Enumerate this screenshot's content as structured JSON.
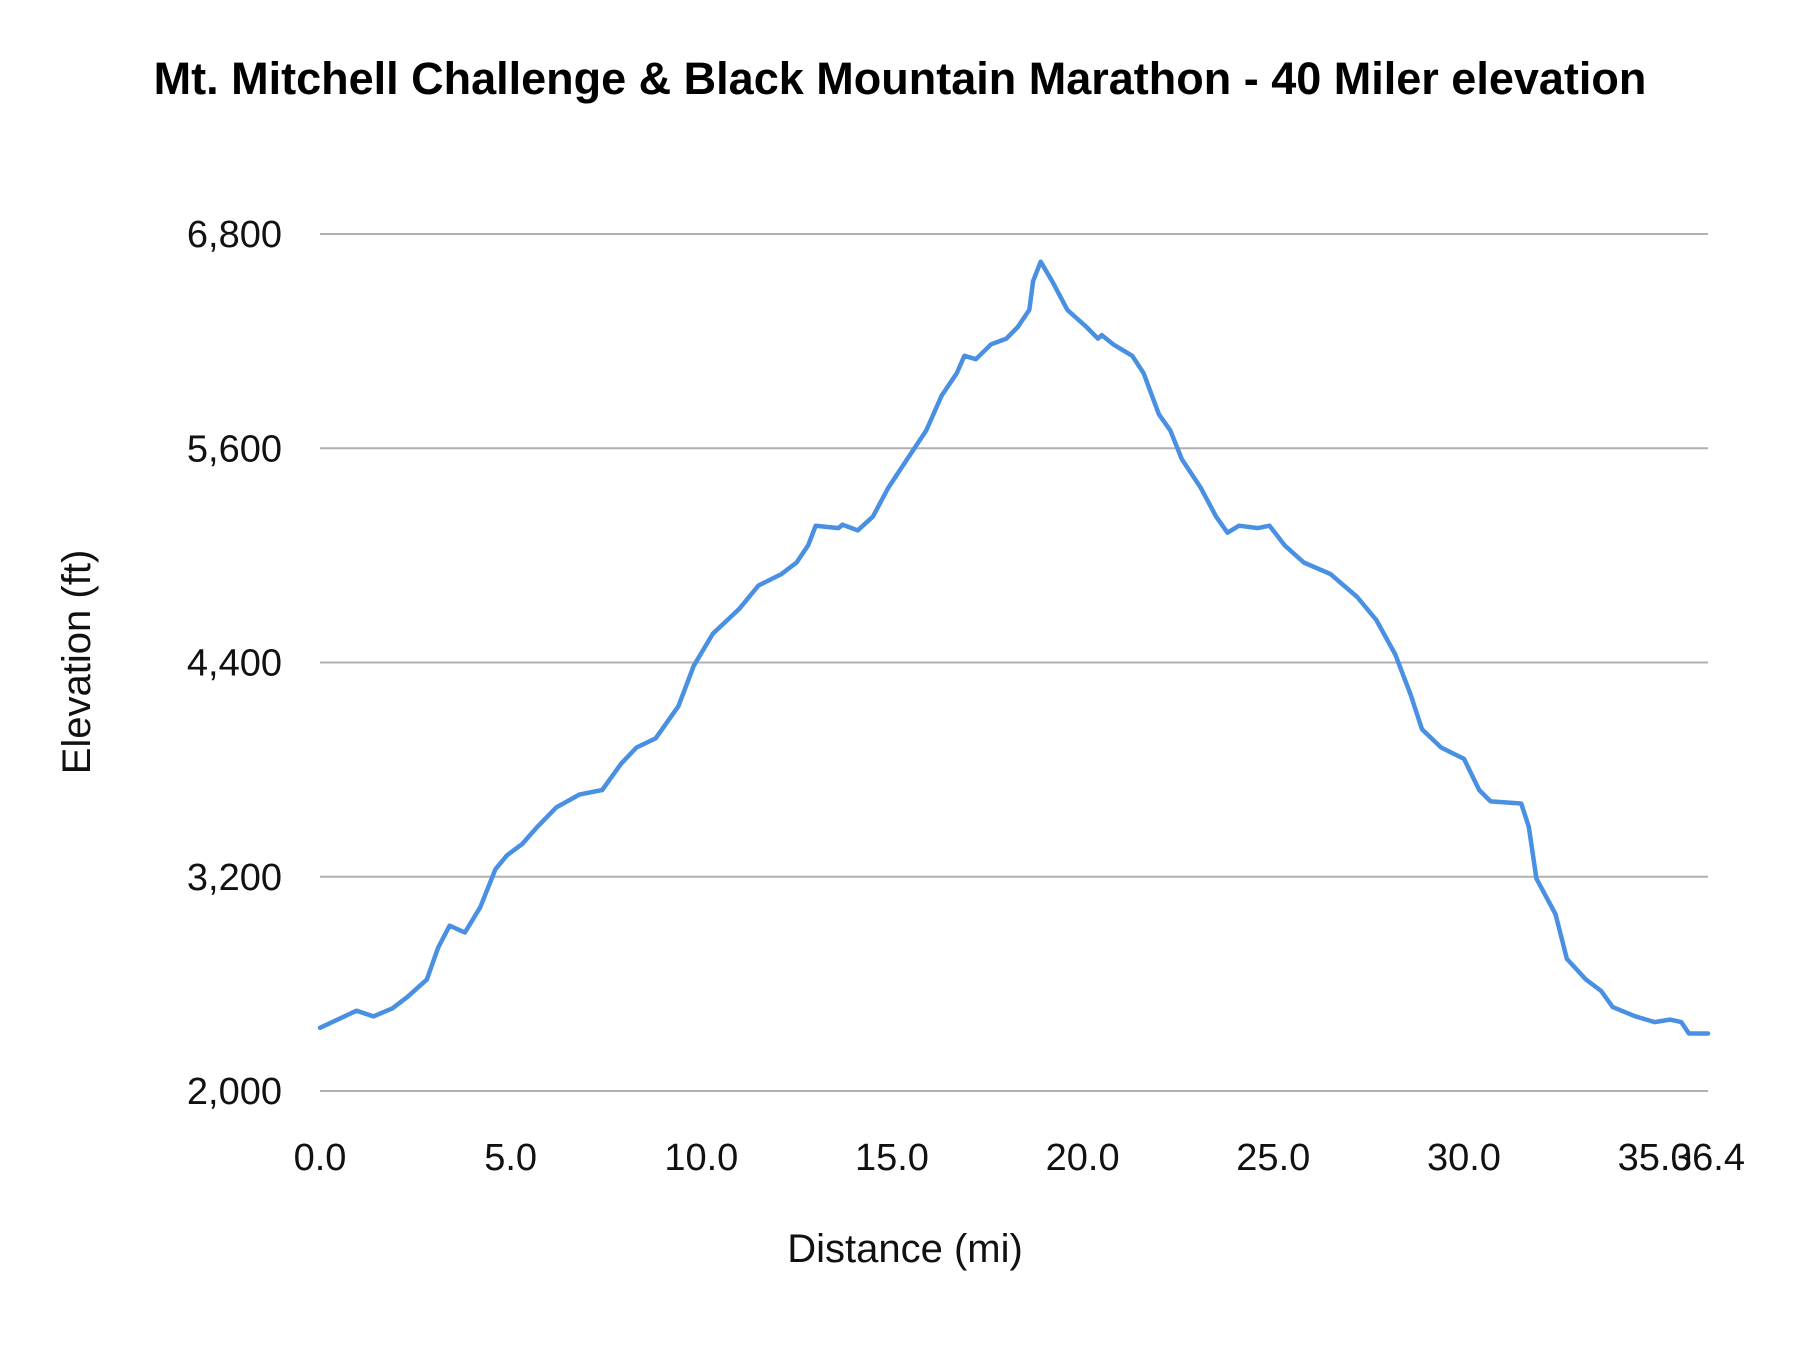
{
  "chart_data": {
    "type": "line",
    "title": "Mt. Mitchell Challenge & Black Mountain Marathon - 40 Miler elevation",
    "xlabel": "Distance (mi)",
    "ylabel": "Elevation (ft)",
    "xlim": [
      0,
      36.4
    ],
    "ylim": [
      2000,
      6800
    ],
    "x_ticks": [
      "0.0",
      "5.0",
      "10.0",
      "15.0",
      "20.0",
      "25.0",
      "30.0",
      "35.0",
      "36.4"
    ],
    "y_ticks": [
      "2,000",
      "3,200",
      "4,400",
      "5,600",
      "6,800"
    ],
    "grid": "horizontal",
    "legend": "none",
    "line_color": "#4a90e2",
    "series": [
      {
        "x": [
          0,
          0.96,
          1.4,
          1.9,
          2.3,
          2.8,
          3.1,
          3.4,
          3.8,
          4.2,
          4.6,
          4.9,
          5.3,
          5.7,
          6.2,
          6.8,
          7.4,
          7.9,
          8.3,
          8.8,
          9.4,
          9.8,
          10.3,
          11.0,
          11.5,
          12.1,
          12.5,
          12.8,
          13.0,
          13.6,
          13.7,
          14.1,
          14.5,
          14.9,
          15.4,
          15.9,
          16.3,
          16.7,
          16.9,
          17.2,
          17.6,
          18.0,
          18.3,
          18.6,
          18.7,
          18.9,
          19.2,
          19.6,
          20.1,
          20.4,
          20.5,
          20.8,
          21.3,
          21.6,
          22.0,
          22.3,
          22.6,
          23.1,
          23.5,
          23.8,
          24.1,
          24.6,
          24.9,
          25.3,
          25.8,
          26.5,
          27.2,
          27.7,
          28.2,
          28.6,
          28.9,
          29.4,
          30.0,
          30.4,
          30.7,
          31.5,
          31.7,
          31.9,
          32.4,
          32.7,
          33.2,
          33.6,
          33.9,
          34.5,
          35.0,
          35.4,
          35.7,
          35.9,
          36.4
        ],
        "y": [
          2354,
          2450,
          2418,
          2463,
          2528,
          2624,
          2804,
          2926,
          2888,
          3029,
          3242,
          3319,
          3383,
          3480,
          3589,
          3660,
          3686,
          3834,
          3924,
          3975,
          4155,
          4381,
          4561,
          4702,
          4831,
          4895,
          4960,
          5056,
          5166,
          5153,
          5172,
          5140,
          5217,
          5378,
          5539,
          5700,
          5893,
          6021,
          6118,
          6099,
          6182,
          6214,
          6279,
          6375,
          6536,
          6645,
          6536,
          6375,
          6279,
          6214,
          6234,
          6182,
          6118,
          6021,
          5790,
          5700,
          5539,
          5378,
          5217,
          5127,
          5166,
          5153,
          5166,
          5056,
          4960,
          4895,
          4767,
          4638,
          4445,
          4220,
          4026,
          3924,
          3860,
          3686,
          3622,
          3610,
          3480,
          3190,
          2990,
          2740,
          2624,
          2560,
          2470,
          2418,
          2386,
          2400,
          2386,
          2322,
          2322
        ]
      }
    ]
  }
}
